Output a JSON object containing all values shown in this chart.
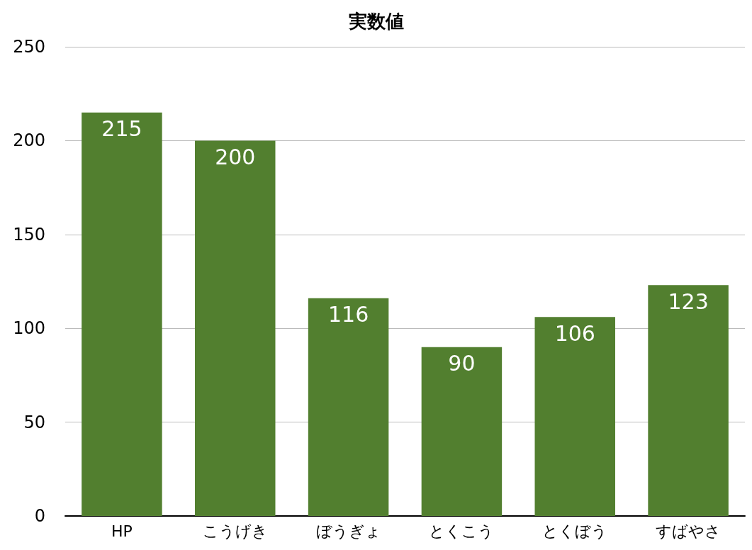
{
  "chart_data": {
    "type": "bar",
    "title": "実数値",
    "categories": [
      "HP",
      "こうげき",
      "ぼうぎょ",
      "とくこう",
      "とくぼう",
      "すばやさ"
    ],
    "values": [
      215,
      200,
      116,
      90,
      106,
      123
    ],
    "color": "#527f2f",
    "ylim": [
      0,
      250
    ],
    "yticks": [
      0,
      50,
      100,
      150,
      200,
      250
    ],
    "grid": "y",
    "data_labels": true
  }
}
